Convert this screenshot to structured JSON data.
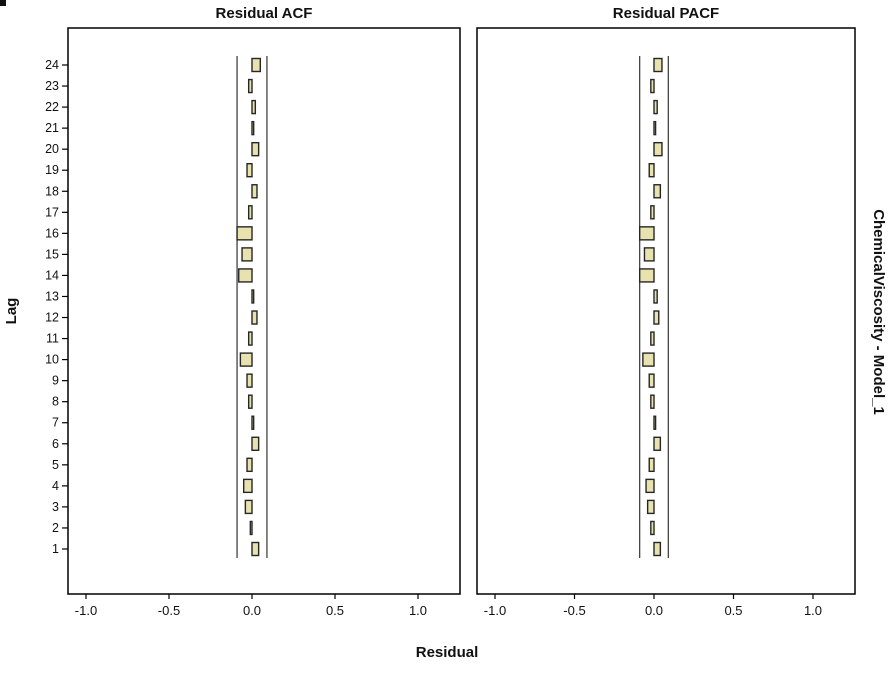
{
  "chart_data": {
    "type": "bar",
    "orientation": "horizontal",
    "ylabel": "Lag",
    "xlabel": "Residual",
    "right_label": "ChemicalViscosity - Model_1",
    "xlim": [
      -1.25,
      1.25
    ],
    "xticks": [
      -1.0,
      -0.5,
      0.0,
      0.5,
      1.0
    ],
    "xtick_labels": [
      "-1.0",
      "-0.5",
      "0.0",
      "0.5",
      "1.0"
    ],
    "lags": [
      1,
      2,
      3,
      4,
      5,
      6,
      7,
      8,
      9,
      10,
      11,
      12,
      13,
      14,
      15,
      16,
      17,
      18,
      19,
      20,
      21,
      22,
      23,
      24
    ],
    "confidence_bound": 0.09,
    "series": [
      {
        "name": "Residual ACF",
        "values": [
          0.04,
          -0.01,
          -0.04,
          -0.05,
          -0.03,
          0.04,
          0.01,
          -0.02,
          -0.03,
          -0.07,
          -0.02,
          0.03,
          0.01,
          -0.08,
          -0.06,
          -0.09,
          -0.02,
          0.03,
          -0.03,
          0.04,
          0.01,
          0.02,
          -0.02,
          0.05
        ]
      },
      {
        "name": "Residual PACF",
        "values": [
          0.04,
          -0.02,
          -0.04,
          -0.05,
          -0.03,
          0.04,
          0.01,
          -0.02,
          -0.03,
          -0.07,
          -0.02,
          0.03,
          0.02,
          -0.09,
          -0.06,
          -0.09,
          -0.02,
          0.04,
          -0.03,
          0.05,
          0.01,
          0.02,
          -0.02,
          0.05
        ]
      }
    ],
    "grid": false,
    "legend": "none",
    "colors": {
      "bar_fill": "#e7e2ae",
      "bar_stroke": "#262626",
      "ci_line": "#333333",
      "panel_border": "#000000",
      "background": "#ffffff"
    }
  }
}
